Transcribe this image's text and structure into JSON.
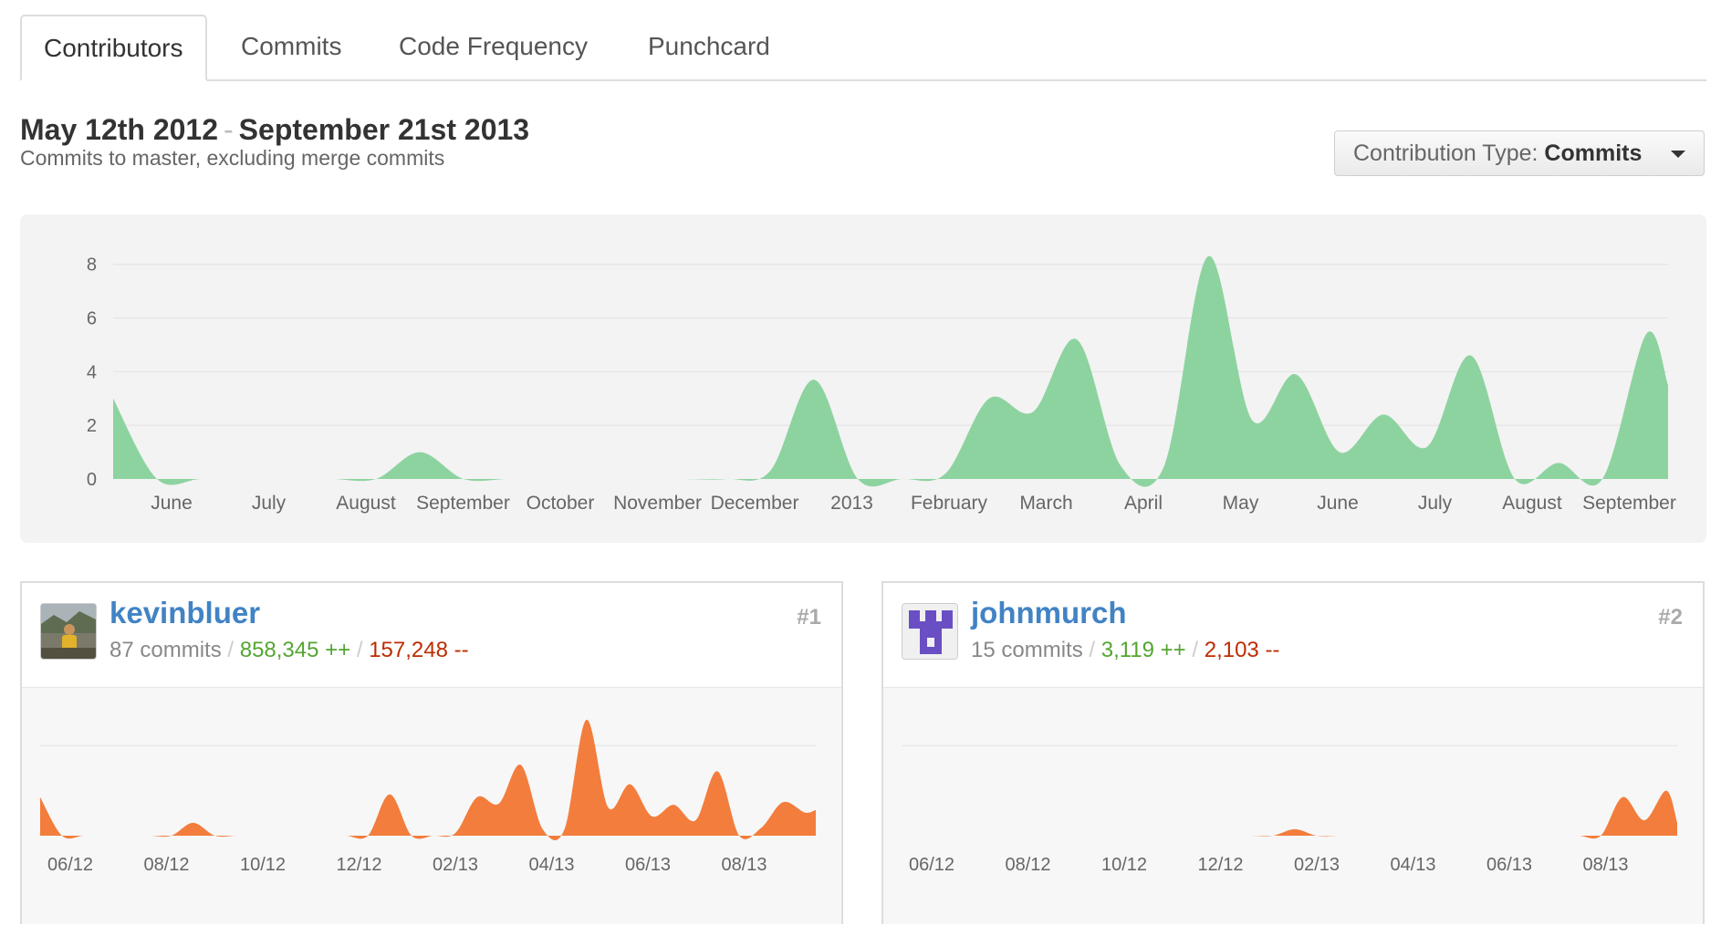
{
  "tabs": [
    {
      "label": "Contributors",
      "active": true
    },
    {
      "label": "Commits",
      "active": false
    },
    {
      "label": "Code Frequency",
      "active": false
    },
    {
      "label": "Punchcard",
      "active": false
    }
  ],
  "header": {
    "range_start": "May 12th 2012",
    "range_separator": "-",
    "range_end": "September 21st 2013",
    "subtitle": "Commits to master, excluding merge commits"
  },
  "contribution_type": {
    "label": "Contribution Type:",
    "value": "Commits"
  },
  "colors": {
    "main_area": "#8dd3a0",
    "contributor_area": "#f37d3c",
    "link": "#4183c4",
    "additions": "#55a532",
    "deletions": "#bd2c00"
  },
  "chart_data": [
    {
      "type": "area",
      "title": "",
      "x_ticks": [
        "June",
        "July",
        "August",
        "September",
        "October",
        "November",
        "December",
        "2013",
        "February",
        "March",
        "April",
        "May",
        "June",
        "July",
        "August",
        "September"
      ],
      "ylim": [
        0,
        8.5
      ],
      "y_ticks": [
        0,
        2,
        4,
        6,
        8
      ],
      "grid": true,
      "x": [
        "2012-05-12",
        "2012-05-26",
        "2012-06-09",
        "2012-06-23",
        "2012-07-07",
        "2012-07-21",
        "2012-08-04",
        "2012-08-18",
        "2012-09-01",
        "2012-09-15",
        "2012-09-29",
        "2012-10-13",
        "2012-10-27",
        "2012-11-10",
        "2012-11-24",
        "2012-12-08",
        "2012-12-22",
        "2013-01-05",
        "2013-01-19",
        "2013-02-02",
        "2013-02-16",
        "2013-03-02",
        "2013-03-16",
        "2013-03-30",
        "2013-04-13",
        "2013-04-27",
        "2013-05-11",
        "2013-05-25",
        "2013-06-08",
        "2013-06-22",
        "2013-07-06",
        "2013-07-20",
        "2013-08-03",
        "2013-08-17",
        "2013-08-31",
        "2013-09-14",
        "2013-09-21"
      ],
      "series": [
        {
          "values": [
            3,
            0,
            0,
            0,
            0,
            0,
            0,
            1,
            0,
            0,
            0,
            0,
            0,
            0,
            0,
            0.3,
            3.7,
            0,
            0,
            0.2,
            3,
            2.5,
            5.2,
            0.5,
            0.5,
            8.3,
            2.2,
            3.9,
            1,
            2.4,
            1.2,
            4.6,
            0,
            0.6,
            0,
            5.4,
            3.5
          ]
        }
      ]
    },
    {
      "type": "area",
      "title": "",
      "x_ticks": [
        "06/12",
        "08/12",
        "10/12",
        "12/12",
        "02/13",
        "04/13",
        "06/13",
        "08/13"
      ],
      "x": [
        "2012-05-12",
        "2012-05-26",
        "2012-06-09",
        "2012-06-23",
        "2012-07-07",
        "2012-07-21",
        "2012-08-04",
        "2012-08-18",
        "2012-09-01",
        "2012-09-15",
        "2012-09-29",
        "2012-10-13",
        "2012-10-27",
        "2012-11-10",
        "2012-11-24",
        "2012-12-08",
        "2012-12-22",
        "2013-01-05",
        "2013-01-19",
        "2013-02-02",
        "2013-02-16",
        "2013-03-02",
        "2013-03-16",
        "2013-03-30",
        "2013-04-13",
        "2013-04-27",
        "2013-05-11",
        "2013-05-25",
        "2013-06-08",
        "2013-06-22",
        "2013-07-06",
        "2013-07-20",
        "2013-08-03",
        "2013-08-17",
        "2013-08-31",
        "2013-09-14",
        "2013-09-21"
      ],
      "ylim": [
        0,
        9
      ],
      "series": [
        {
          "name": "kevinbluer",
          "values": [
            3,
            0,
            0,
            0,
            0,
            0,
            0,
            1,
            0,
            0,
            0,
            0,
            0,
            0,
            0,
            0,
            3.2,
            0,
            0,
            0.2,
            3,
            2.5,
            5.5,
            0.5,
            0.5,
            9,
            2.2,
            4,
            1.5,
            2.4,
            1.2,
            5,
            0,
            0.6,
            2.6,
            1.8,
            2
          ]
        }
      ]
    },
    {
      "type": "area",
      "title": "",
      "x_ticks": [
        "06/12",
        "08/12",
        "10/12",
        "12/12",
        "02/13",
        "04/13",
        "06/13",
        "08/13"
      ],
      "x": [
        "2012-05-12",
        "2012-05-26",
        "2012-06-09",
        "2012-06-23",
        "2012-07-07",
        "2012-07-21",
        "2012-08-04",
        "2012-08-18",
        "2012-09-01",
        "2012-09-15",
        "2012-09-29",
        "2012-10-13",
        "2012-10-27",
        "2012-11-10",
        "2012-11-24",
        "2012-12-08",
        "2012-12-22",
        "2013-01-05",
        "2013-01-19",
        "2013-02-02",
        "2013-02-16",
        "2013-03-02",
        "2013-03-16",
        "2013-03-30",
        "2013-04-13",
        "2013-04-27",
        "2013-05-11",
        "2013-05-25",
        "2013-06-08",
        "2013-06-22",
        "2013-07-06",
        "2013-07-20",
        "2013-08-03",
        "2013-08-17",
        "2013-08-31",
        "2013-09-14",
        "2013-09-21"
      ],
      "ylim": [
        0,
        9
      ],
      "series": [
        {
          "name": "johnmurch",
          "values": [
            0,
            0,
            0,
            0,
            0,
            0,
            0,
            0,
            0,
            0,
            0,
            0,
            0,
            0,
            0,
            0,
            0,
            0,
            0.5,
            0,
            0,
            0,
            0,
            0,
            0,
            0,
            0,
            0,
            0,
            0,
            0,
            0,
            0,
            3,
            1.2,
            3.5,
            1
          ]
        }
      ]
    }
  ],
  "contributors": [
    {
      "username": "kevinbluer",
      "rank": "#1",
      "commits": "87 commits",
      "additions": "858,345 ++",
      "deletions": "157,248 --",
      "stats_separator": "/"
    },
    {
      "username": "johnmurch",
      "rank": "#2",
      "commits": "15 commits",
      "additions": "3,119 ++",
      "deletions": "2,103 --",
      "stats_separator": "/"
    }
  ]
}
